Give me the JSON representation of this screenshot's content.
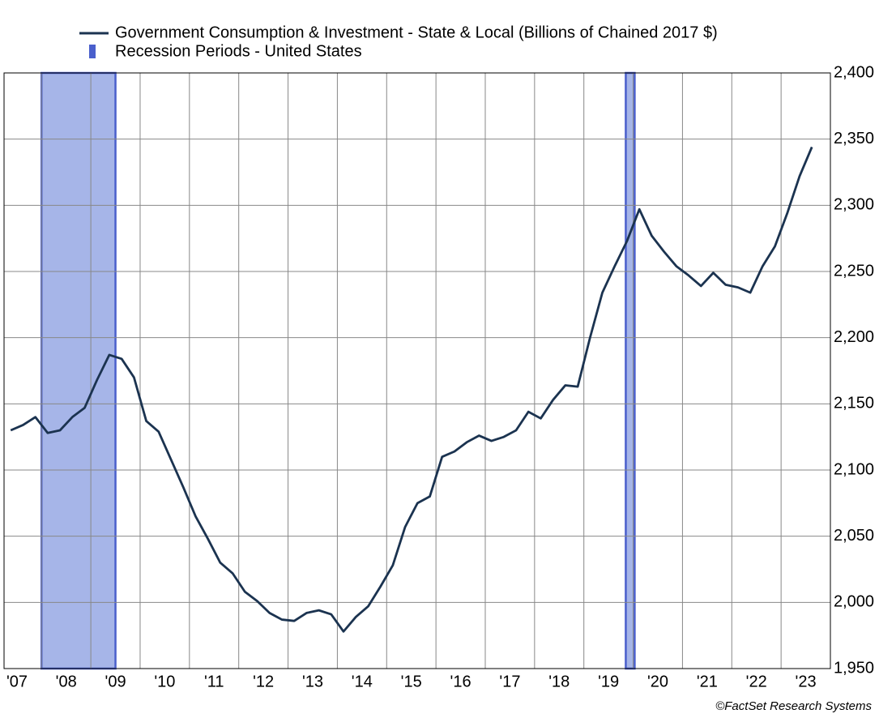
{
  "chart_data": {
    "type": "line",
    "series": [
      {
        "name": "Government Consumption & Investment - State & Local (Billions of Chained 2017 $)",
        "color": "#1b3350",
        "values": [
          2130,
          2134,
          2140,
          2128,
          2130,
          2140,
          2147,
          2168,
          2187,
          2184,
          2170,
          2137,
          2129,
          2108,
          2087,
          2065,
          2048,
          2030,
          2022,
          2008,
          2001,
          1992,
          1987,
          1986,
          1992,
          1994,
          1991,
          1978,
          1989,
          1997,
          2012,
          2028,
          2057,
          2075,
          2080,
          2110,
          2114,
          2121,
          2126,
          2122,
          2125,
          2130,
          2144,
          2139,
          2153,
          2164,
          2163,
          2200,
          2234,
          2254,
          2273,
          2297,
          2277,
          2265,
          2254,
          2247,
          2239,
          2249,
          2240,
          2238,
          2234,
          2254,
          2269,
          2294,
          2322,
          2344
        ]
      }
    ],
    "x": [
      2007.375,
      2007.625,
      2007.875,
      2008.125,
      2008.375,
      2008.625,
      2008.875,
      2009.125,
      2009.375,
      2009.625,
      2009.875,
      2010.125,
      2010.375,
      2010.625,
      2010.875,
      2011.125,
      2011.375,
      2011.625,
      2011.875,
      2012.125,
      2012.375,
      2012.625,
      2012.875,
      2013.125,
      2013.375,
      2013.625,
      2013.875,
      2014.125,
      2014.375,
      2014.625,
      2014.875,
      2015.125,
      2015.375,
      2015.625,
      2015.875,
      2016.125,
      2016.375,
      2016.625,
      2016.875,
      2017.125,
      2017.375,
      2017.625,
      2017.875,
      2018.125,
      2018.375,
      2018.625,
      2018.875,
      2019.125,
      2019.375,
      2019.625,
      2019.875,
      2020.125,
      2020.375,
      2020.625,
      2020.875,
      2021.125,
      2021.375,
      2021.625,
      2021.875,
      2022.125,
      2022.375,
      2022.625,
      2022.875,
      2023.125,
      2023.375,
      2023.625
    ],
    "recessions": {
      "name": "Recession Periods - United States",
      "color": "#a6b5e8",
      "edge": "#4a5fcc",
      "periods": [
        [
          2008.0,
          2009.5
        ],
        [
          2019.85,
          2020.03
        ]
      ]
    },
    "xlim": [
      2007.24,
      2024.0
    ],
    "xticks": [
      {
        "value": 2007,
        "label": "'07"
      },
      {
        "value": 2008,
        "label": "'08"
      },
      {
        "value": 2009,
        "label": "'09"
      },
      {
        "value": 2010,
        "label": "'10"
      },
      {
        "value": 2011,
        "label": "'11"
      },
      {
        "value": 2012,
        "label": "'12"
      },
      {
        "value": 2013,
        "label": "'13"
      },
      {
        "value": 2014,
        "label": "'14"
      },
      {
        "value": 2015,
        "label": "'15"
      },
      {
        "value": 2016,
        "label": "'16"
      },
      {
        "value": 2017,
        "label": "'17"
      },
      {
        "value": 2018,
        "label": "'18"
      },
      {
        "value": 2019,
        "label": "'19"
      },
      {
        "value": 2020,
        "label": "'20"
      },
      {
        "value": 2021,
        "label": "'21"
      },
      {
        "value": 2022,
        "label": "'22"
      },
      {
        "value": 2023,
        "label": "'23"
      }
    ],
    "ylim": [
      1950,
      2400
    ],
    "yticks": [
      {
        "value": 1950,
        "label": "1,950"
      },
      {
        "value": 2000,
        "label": "2,000"
      },
      {
        "value": 2050,
        "label": "2,050"
      },
      {
        "value": 2100,
        "label": "2,100"
      },
      {
        "value": 2150,
        "label": "2,150"
      },
      {
        "value": 2200,
        "label": "2,200"
      },
      {
        "value": 2250,
        "label": "2,250"
      },
      {
        "value": 2300,
        "label": "2,300"
      },
      {
        "value": 2350,
        "label": "2,350"
      },
      {
        "value": 2400,
        "label": "2,400"
      }
    ],
    "grid": true,
    "credit": "©FactSet Research Systems"
  }
}
